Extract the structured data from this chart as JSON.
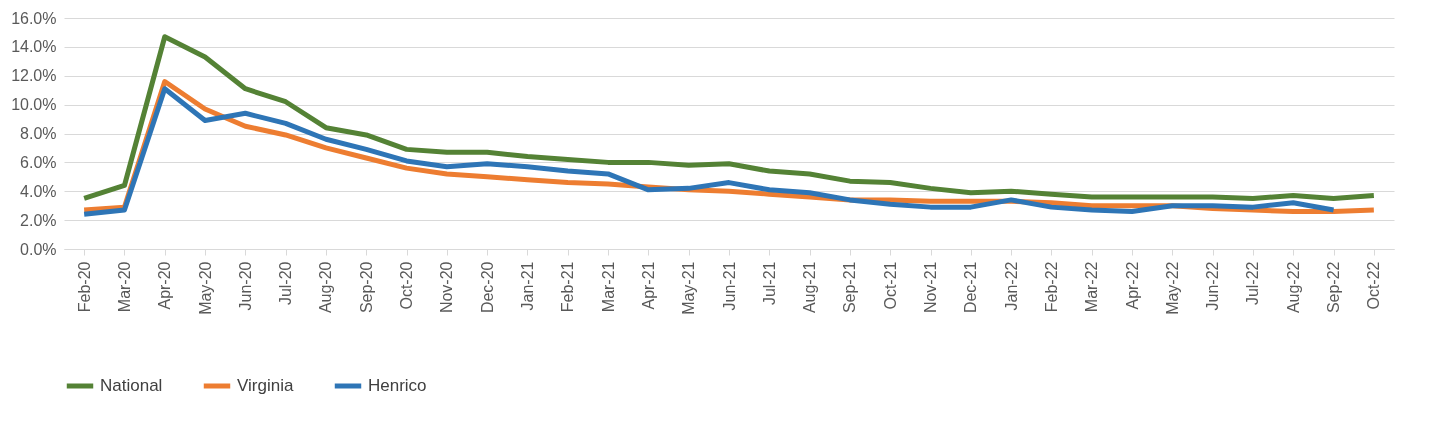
{
  "chart_data": {
    "type": "line",
    "categories": [
      "Feb-20",
      "Mar-20",
      "Apr-20",
      "May-20",
      "Jun-20",
      "Jul-20",
      "Aug-20",
      "Sep-20",
      "Oct-20",
      "Nov-20",
      "Dec-20",
      "Jan-21",
      "Feb-21",
      "Mar-21",
      "Apr-21",
      "May-21",
      "Jun-21",
      "Jul-21",
      "Aug-21",
      "Sep-21",
      "Oct-21",
      "Nov-21",
      "Dec-21",
      "Jan-22",
      "Feb-22",
      "Mar-22",
      "Apr-22",
      "May-22",
      "Jun-22",
      "Jul-22",
      "Aug-22",
      "Sep-22",
      "Oct-22"
    ],
    "series": [
      {
        "name": "National",
        "color": "#548235",
        "values": [
          3.5,
          4.4,
          14.7,
          13.3,
          11.1,
          10.2,
          8.4,
          7.9,
          6.9,
          6.7,
          6.7,
          6.4,
          6.2,
          6.0,
          6.0,
          5.8,
          5.9,
          5.4,
          5.2,
          4.7,
          4.6,
          4.2,
          3.9,
          4.0,
          3.8,
          3.6,
          3.6,
          3.6,
          3.6,
          3.5,
          3.7,
          3.5,
          3.7
        ]
      },
      {
        "name": "Virginia",
        "color": "#ed7d31",
        "values": [
          2.7,
          2.9,
          11.6,
          9.7,
          8.5,
          7.9,
          7.0,
          6.3,
          5.6,
          5.2,
          5.0,
          4.8,
          4.6,
          4.5,
          4.3,
          4.1,
          4.0,
          3.8,
          3.6,
          3.4,
          3.4,
          3.3,
          3.3,
          3.3,
          3.2,
          3.0,
          3.0,
          3.0,
          2.8,
          2.7,
          2.6,
          2.6,
          2.7
        ]
      },
      {
        "name": "Henrico",
        "color": "#2e75b6",
        "values": [
          2.4,
          2.7,
          11.1,
          8.9,
          9.4,
          8.7,
          7.6,
          6.9,
          6.1,
          5.7,
          5.9,
          5.7,
          5.4,
          5.2,
          4.1,
          4.2,
          4.6,
          4.1,
          3.9,
          3.4,
          3.1,
          2.9,
          2.9,
          3.4,
          2.9,
          2.7,
          2.6,
          3.0,
          3.0,
          2.9,
          3.2,
          2.7,
          null
        ]
      }
    ],
    "ylim": [
      0,
      16
    ],
    "yticks": [
      {
        "value": 0,
        "label": "0.0%"
      },
      {
        "value": 2,
        "label": "2.0%"
      },
      {
        "value": 4,
        "label": "4.0%"
      },
      {
        "value": 6,
        "label": "6.0%"
      },
      {
        "value": 8,
        "label": "8.0%"
      },
      {
        "value": 10,
        "label": "10.0%"
      },
      {
        "value": 12,
        "label": "12.0%"
      },
      {
        "value": 14,
        "label": "14.0%"
      },
      {
        "value": 16,
        "label": "16.0%"
      }
    ],
    "grid": "y",
    "legend": "bottom",
    "line_style": "solid"
  }
}
